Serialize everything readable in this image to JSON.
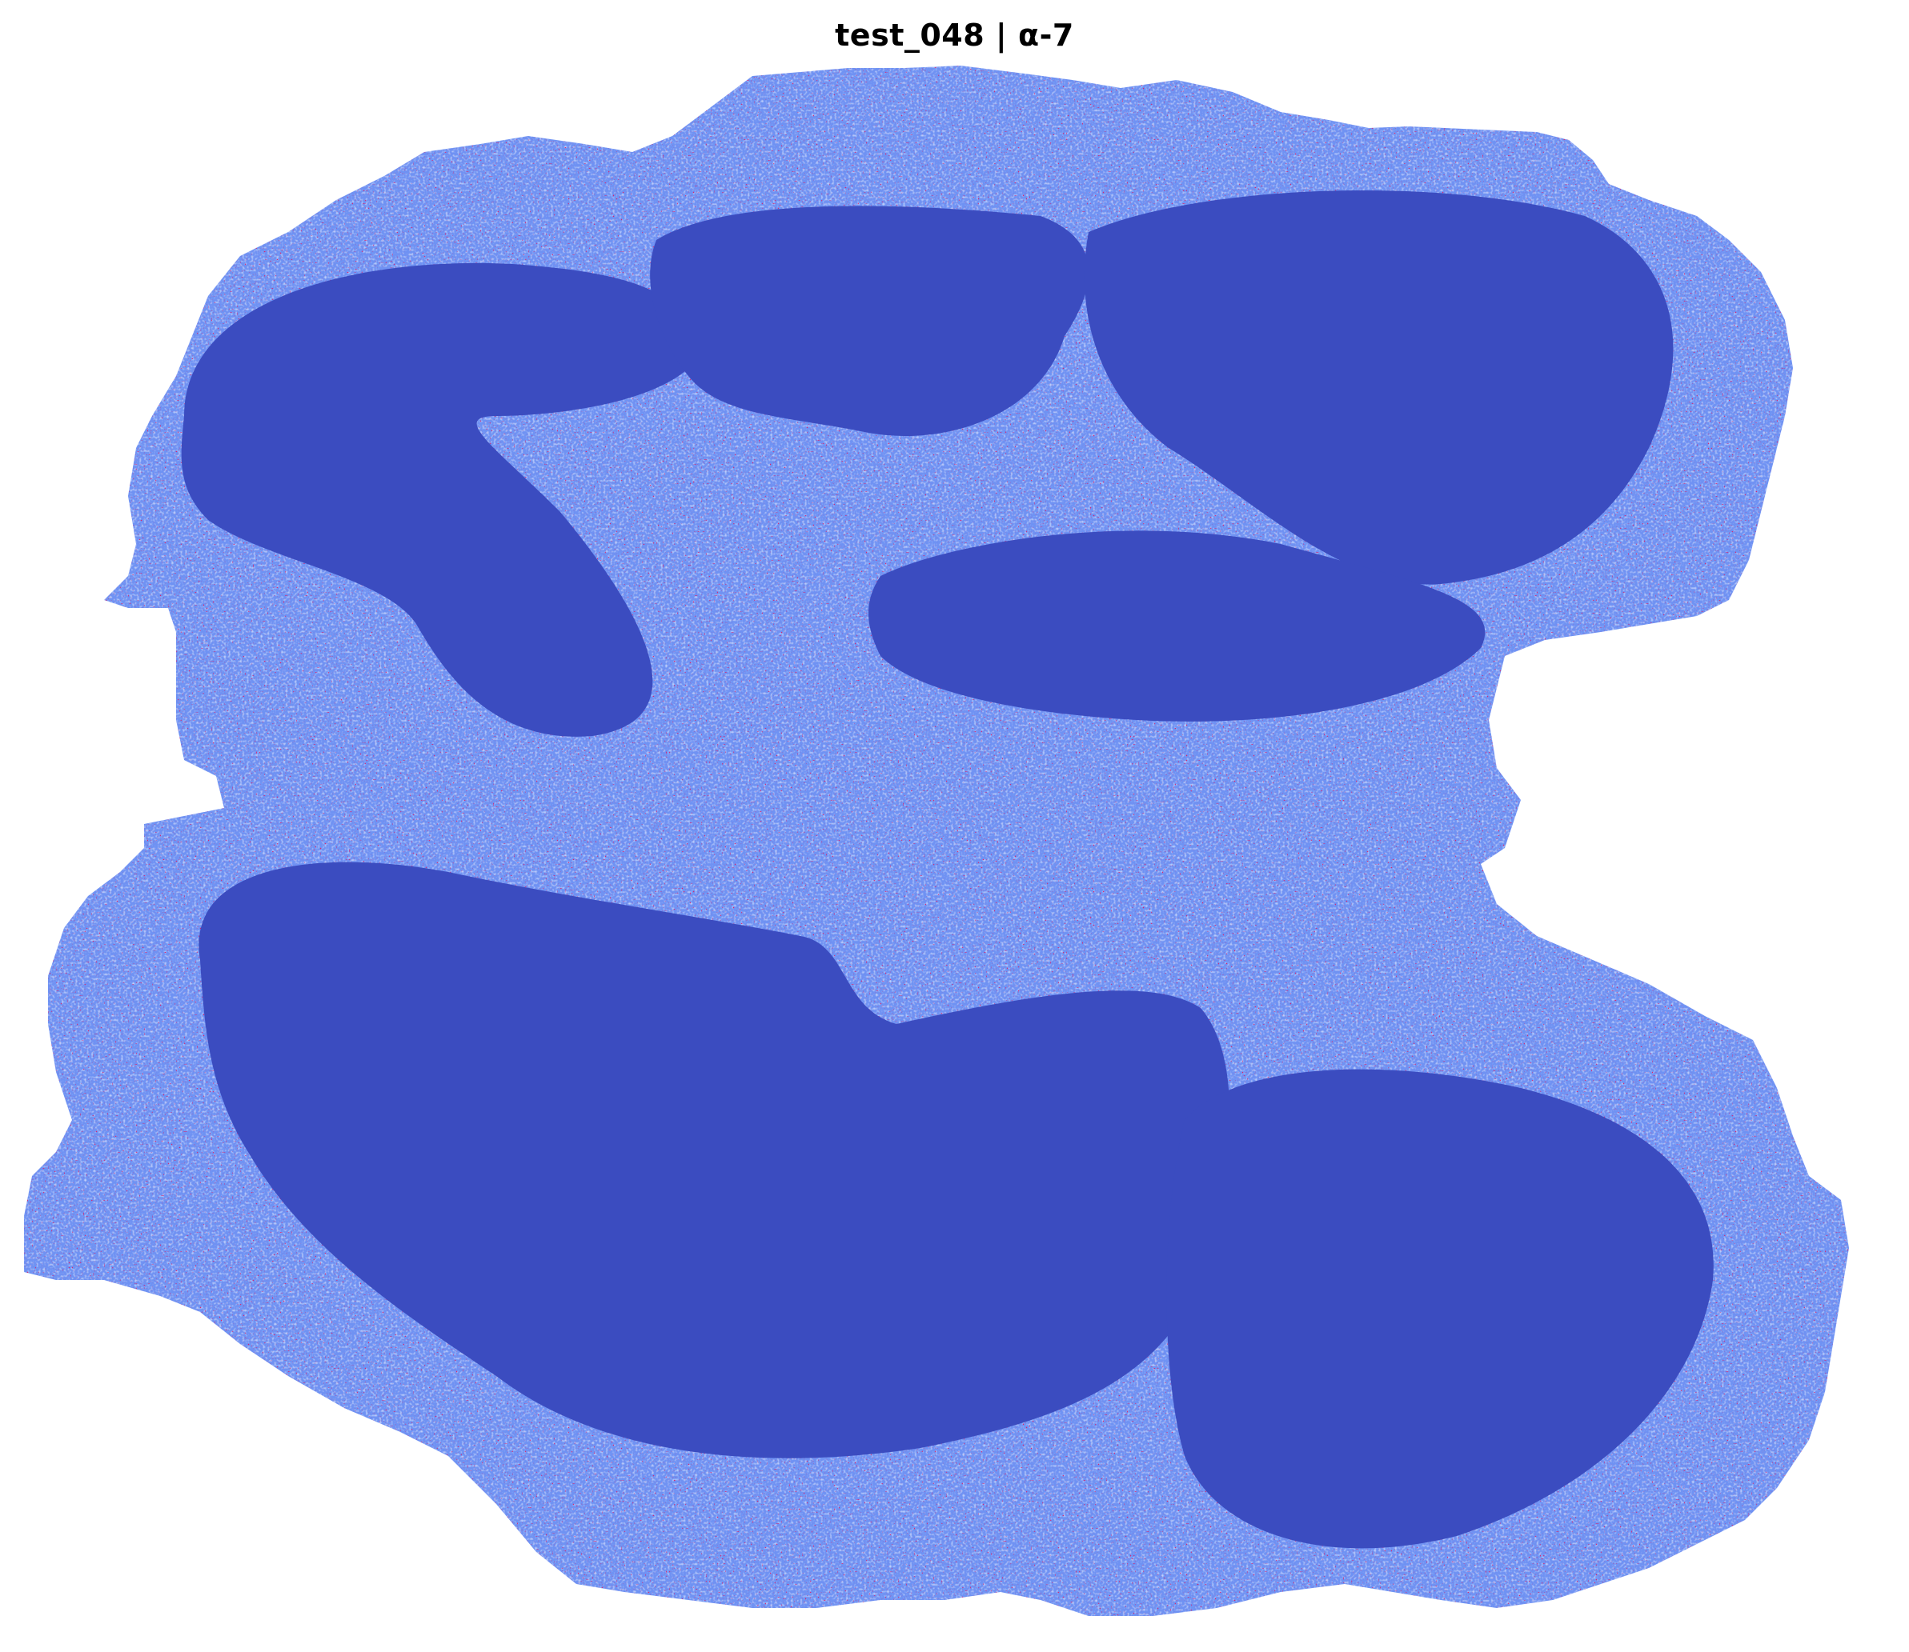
{
  "chart_data": {
    "type": "heatmap",
    "title": "test_048 | α-7",
    "xlabel": "",
    "ylabel": "",
    "axes_visible": false,
    "grid": false,
    "legend": "none",
    "colormap": "coolwarm",
    "colors": {
      "background": "#ffffff",
      "low": "#3b4cc0",
      "mid_low": "#6f92f3",
      "mid": "#aac7fd",
      "mid_high": "#f4c5ad",
      "high": "#b40426"
    },
    "description_note": "",
    "regions": [
      {
        "name": "",
        "level": 0.0
      },
      {
        "name": "",
        "level": 0.0
      },
      {
        "name": "",
        "level": 0.0
      },
      {
        "name": "",
        "level": 0.0
      },
      {
        "name": "",
        "level": 0.0
      },
      {
        "name": "",
        "level": 0.0
      }
    ]
  }
}
